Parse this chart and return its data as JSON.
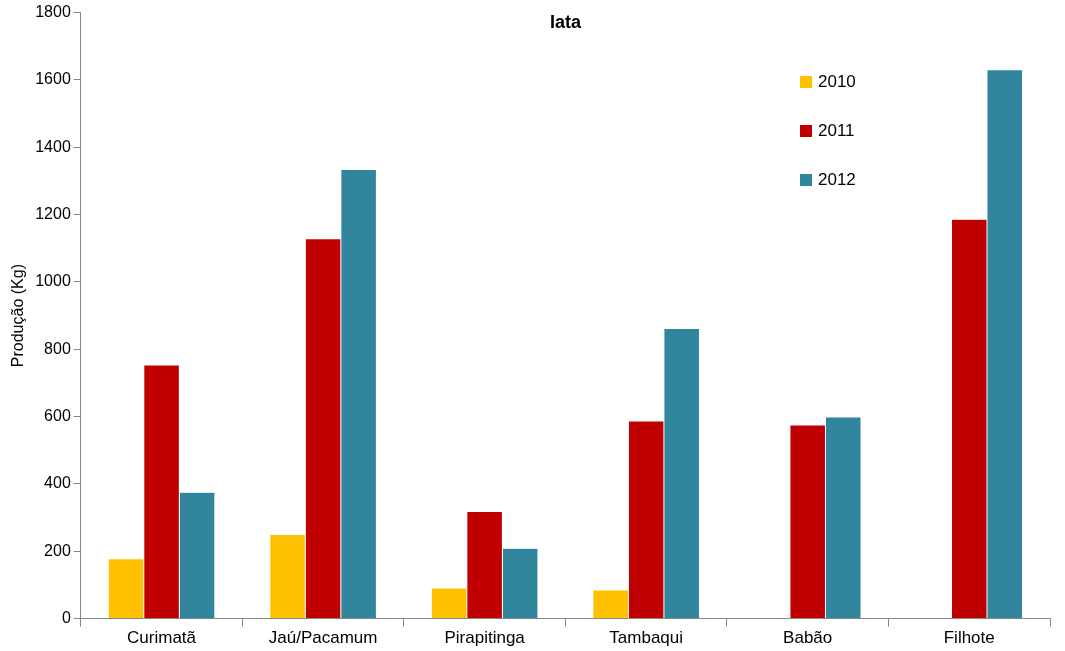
{
  "chart_data": {
    "type": "bar",
    "title": "Iata",
    "ylabel": "Produção (Kg)",
    "categories": [
      "Curimatã",
      "Jaú/Pacamum",
      "Pirapitinga",
      "Tambaqui",
      "Babão",
      "Filhote"
    ],
    "series": [
      {
        "name": "2010",
        "color": "#ffc000",
        "values": [
          178,
          250,
          91,
          85,
          null,
          null
        ]
      },
      {
        "name": "2011",
        "color": "#c00000",
        "values": [
          753,
          1128,
          318,
          587,
          575,
          1186
        ]
      },
      {
        "name": "2012",
        "color": "#31859c",
        "values": [
          375,
          1334,
          209,
          862,
          599,
          1630
        ]
      }
    ],
    "ylim": [
      0,
      1800
    ],
    "yticks": [
      0,
      200,
      400,
      600,
      800,
      1000,
      1200,
      1400,
      1600,
      1800
    ],
    "grid": false,
    "legend": "top right"
  }
}
